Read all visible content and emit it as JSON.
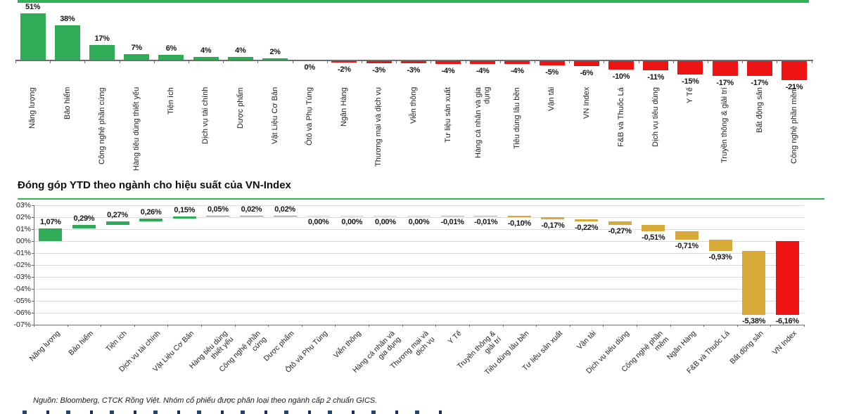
{
  "page": {
    "footer": "Nguồn: Bloomberg, CTCK Rồng Việt. Nhóm cổ phiếu được phân loại theo ngành cấp 2 chuẩn GICS.",
    "colors": {
      "positive_green": "#2FAC55",
      "negative_red": "#EE1414",
      "contribution_gold": "#D8A839",
      "zero_sliver_gray": "#CCCCCC",
      "accent_rule_green": "#31B254"
    }
  },
  "chart_data": [
    {
      "id": "ytd-sector-performance",
      "type": "bar",
      "title": "",
      "xlabel": "",
      "ylabel": "",
      "grid": false,
      "legend": null,
      "categories": [
        "Năng lượng",
        "Bảo hiểm",
        "Công nghệ phần cứng",
        "Hàng tiêu dùng thiết yếu",
        "Tiện ích",
        "Dịch vụ tài chính",
        "Dược phẩm",
        "Vật Liệu Cơ Bản",
        "Ôtô và Phụ Tùng",
        "Ngân Hàng",
        "Thương mại và dịch vụ",
        "Viễn thông",
        "Tư liệu sản xuất",
        "Hàng cá nhân và gia dụng",
        "Tiêu dùng lâu bền",
        "Vận tải",
        "VN Index",
        "F&B và Thuốc Lá",
        "Dịch vụ tiêu dùng",
        "Y Tế",
        "Truyền thông & giải trí",
        "Bất động sản",
        "Công nghệ phần mềm"
      ],
      "values": [
        51,
        38,
        17,
        7,
        6,
        4,
        4,
        2,
        0,
        -2,
        -3,
        -3,
        -4,
        -4,
        -4,
        -5,
        -6,
        -10,
        -11,
        -15,
        -17,
        -17,
        -21
      ],
      "labels": [
        "51%",
        "38%",
        "17%",
        "7%",
        "6%",
        "4%",
        "4%",
        "2%",
        "0%",
        "-2%",
        "-3%",
        "-3%",
        "-4%",
        "-4%",
        "-4%",
        "-5%",
        "-6%",
        "-10%",
        "-11%",
        "-15%",
        "-17%",
        "-17%",
        "-21%"
      ],
      "unit": "%"
    },
    {
      "id": "ytd-sector-contribution",
      "type": "bar",
      "subtype": "waterfall",
      "title": "Đóng góp YTD theo ngành cho hiệu suất của VN-Index",
      "xlabel": "",
      "ylabel": "",
      "grid": true,
      "legend": null,
      "ylim": [
        -7,
        3
      ],
      "ytick_labels": [
        "03%",
        "02%",
        "01%",
        "00%",
        "-01%",
        "-02%",
        "-03%",
        "-04%",
        "-05%",
        "-06%",
        "-07%"
      ],
      "categories": [
        "Năng lượng",
        "Bảo hiểm",
        "Tiện ích",
        "Dịch vụ tài chính",
        "Vật Liệu Cơ Bản",
        "Hàng tiêu dùng thiết yếu",
        "Công nghệ phần cứng",
        "Dược phẩm",
        "Ôtô và Phụ Tùng",
        "Viễn thông",
        "Hàng cá nhân và gia dụng",
        "Thương mại và dịch vụ",
        "Y Tế",
        "Truyền thông & giải trí",
        "Tiêu dùng lâu bền",
        "Tư liệu sản xuất",
        "Vận tải",
        "Dịch vụ tiêu dùng",
        "Công nghệ phần mềm",
        "Ngân Hàng",
        "F&B và Thuốc Lá",
        "Bất động sản",
        "VN Index"
      ],
      "values": [
        1.07,
        0.29,
        0.27,
        0.26,
        0.15,
        0.05,
        0.02,
        0.02,
        0.0,
        0.0,
        0.0,
        0.0,
        -0.01,
        -0.01,
        -0.1,
        -0.17,
        -0.22,
        -0.27,
        -0.51,
        -0.71,
        -0.93,
        -5.38,
        -6.16
      ],
      "labels": [
        "1,07%",
        "0,29%",
        "0,27%",
        "0,26%",
        "0,15%",
        "0,05%",
        "0,02%",
        "0,02%",
        "0,00%",
        "0,00%",
        "0,00%",
        "0,00%",
        "-0,01%",
        "-0,01%",
        "-0,10%",
        "-0,17%",
        "-0,22%",
        "-0,27%",
        "-0,51%",
        "-0,71%",
        "-0,93%",
        "-5,38%",
        "-6,16%"
      ],
      "total_category": "VN Index",
      "unit": "%"
    }
  ]
}
